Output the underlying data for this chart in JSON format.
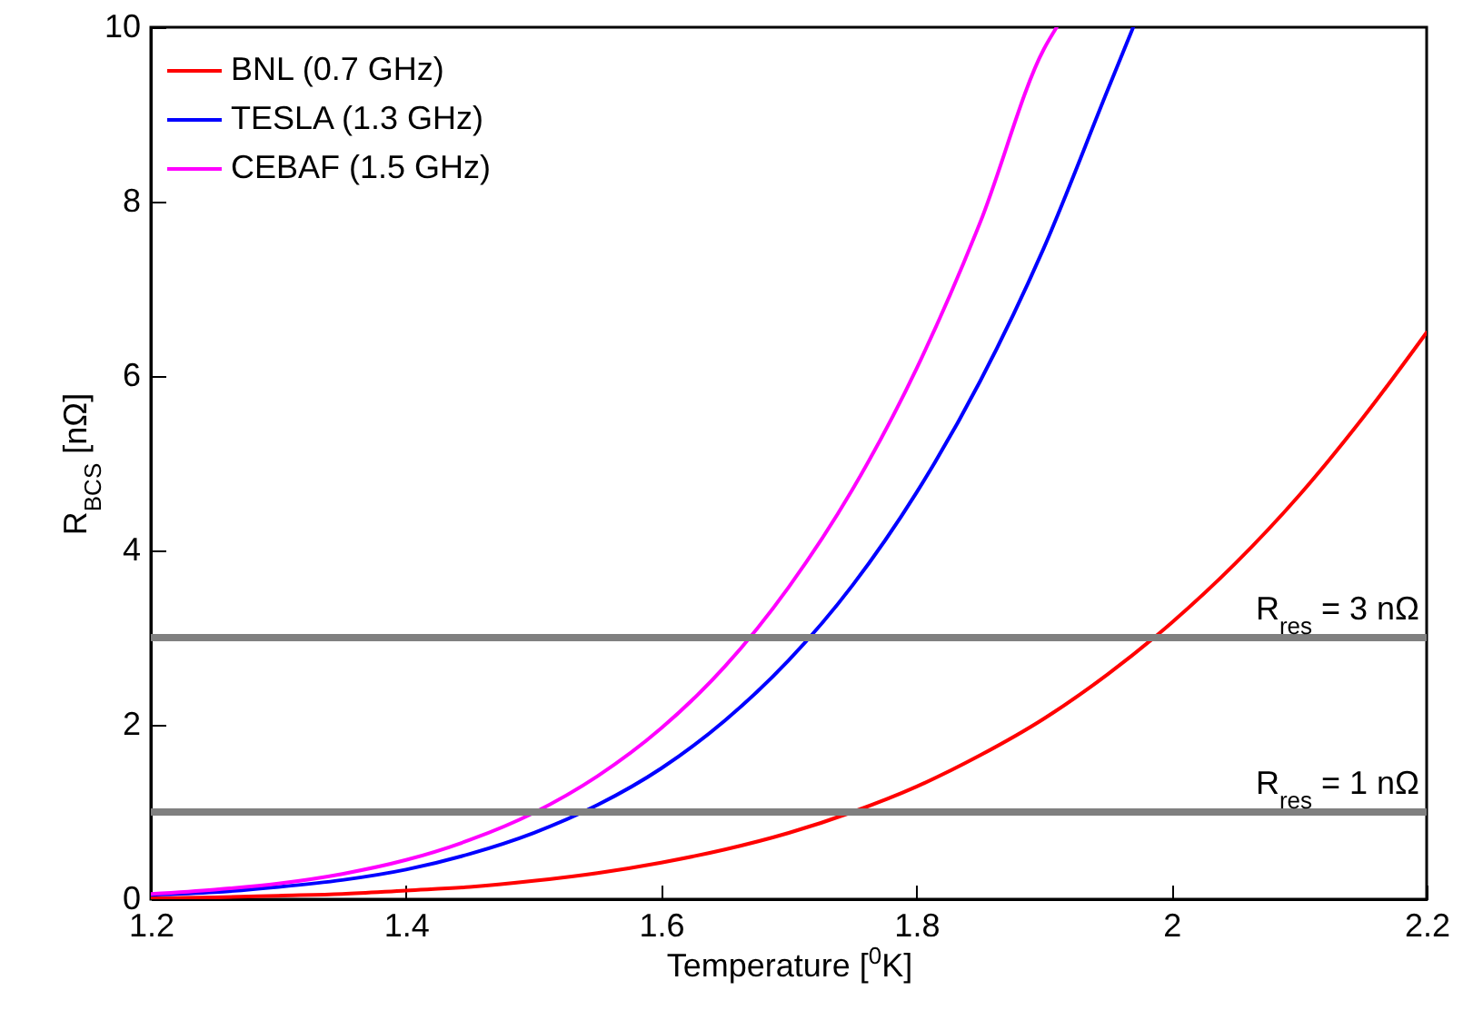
{
  "chart_data": {
    "type": "line",
    "xlabel": "Temperature [$^{0}$K]",
    "ylabel": "R$_{BCS}$ [nΩ]",
    "xlim": [
      1.2,
      2.2
    ],
    "xticks": [
      1.2,
      1.4,
      1.6,
      1.8,
      2,
      2.2
    ],
    "ylim": [
      0,
      10
    ],
    "yticks": [
      0,
      2,
      4,
      6,
      8,
      10
    ],
    "grid": false,
    "legend": "top left",
    "line_style": "solid",
    "marker": "none",
    "series": [
      {
        "name": "BNL (0.7 GHz)",
        "color": "#ff0000",
        "x": [
          1.2,
          1.25,
          1.3,
          1.35,
          1.4,
          1.45,
          1.5,
          1.55,
          1.6,
          1.65,
          1.7,
          1.75,
          1.8,
          1.85,
          1.9,
          1.95,
          2.0,
          2.05,
          2.1,
          2.15,
          2.2
        ],
        "values": [
          0.01,
          0.02,
          0.04,
          0.06,
          0.1,
          0.14,
          0.21,
          0.3,
          0.42,
          0.57,
          0.76,
          1.0,
          1.29,
          1.65,
          2.07,
          2.58,
          3.17,
          3.85,
          4.63,
          5.52,
          6.5
        ]
      },
      {
        "name": "TESLA (1.3 GHz)",
        "color": "#0000ff",
        "x": [
          1.2,
          1.25,
          1.3,
          1.35,
          1.4,
          1.45,
          1.5,
          1.55,
          1.6,
          1.65,
          1.7,
          1.75,
          1.8,
          1.85,
          1.9,
          1.95,
          1.97
        ],
        "values": [
          0.05,
          0.08,
          0.14,
          0.22,
          0.34,
          0.52,
          0.76,
          1.08,
          1.5,
          2.05,
          2.74,
          3.6,
          4.66,
          5.94,
          7.47,
          9.28,
          10
        ]
      },
      {
        "name": "CEBAF (1.5 GHz)",
        "color": "#ff00ff",
        "x": [
          1.2,
          1.25,
          1.3,
          1.35,
          1.4,
          1.45,
          1.5,
          1.55,
          1.6,
          1.65,
          1.7,
          1.75,
          1.8,
          1.85,
          1.9,
          1.91
        ],
        "values": [
          0.06,
          0.11,
          0.18,
          0.29,
          0.45,
          0.68,
          0.99,
          1.41,
          1.96,
          2.67,
          3.58,
          4.7,
          6.08,
          7.76,
          9.75,
          10
        ]
      }
    ],
    "ref_lines": [
      {
        "axis": "y",
        "value": 3,
        "label": "R$_{res}$ = 3 nΩ",
        "color": "#808080"
      },
      {
        "axis": "y",
        "value": 1,
        "label": "R$_{res}$ = 1 nΩ",
        "color": "#808080"
      }
    ]
  }
}
